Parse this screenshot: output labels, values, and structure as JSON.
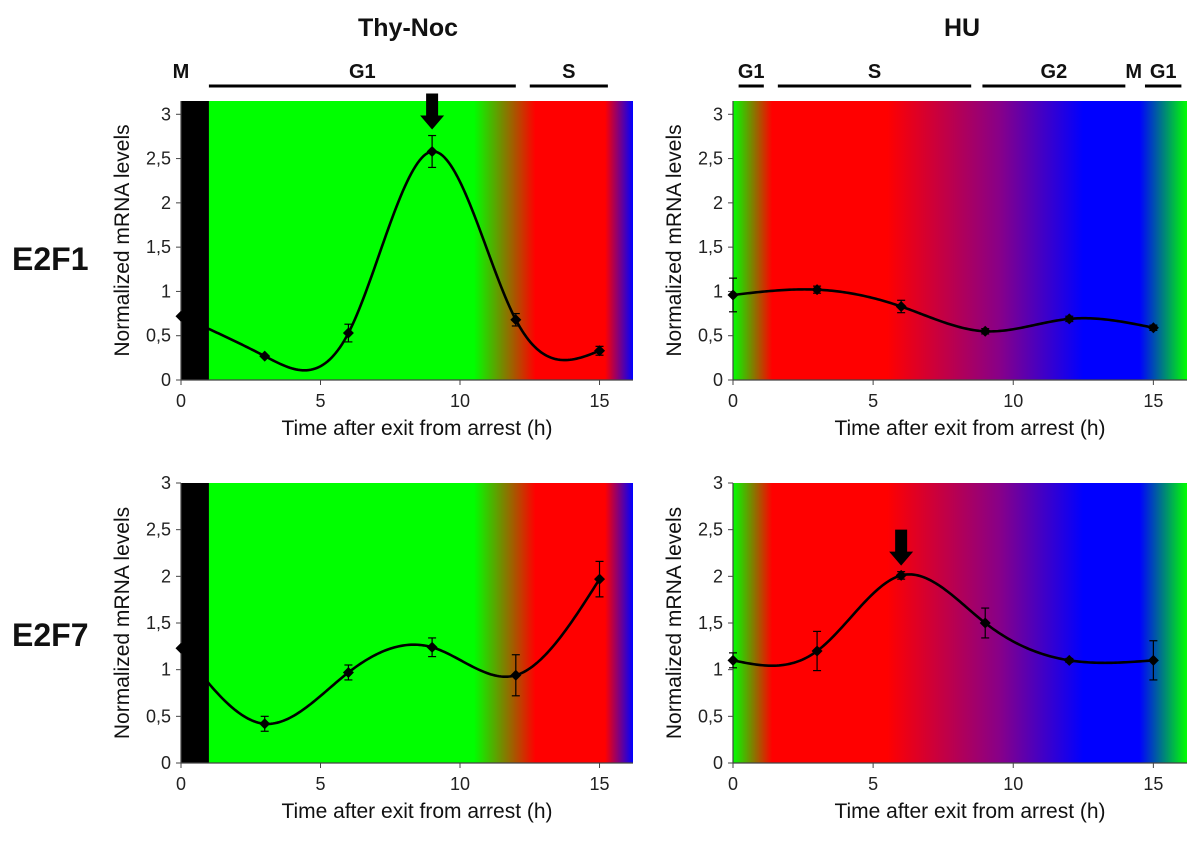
{
  "figure": {
    "col_titles": [
      "Thy-Noc",
      "HU"
    ],
    "row_labels": [
      "E2F1",
      "E2F7"
    ],
    "phase_bars": [
      [
        {
          "label": "M",
          "start": -0.3,
          "end": 0.3,
          "line": false
        },
        {
          "label": "G1",
          "start": 1,
          "end": 12,
          "line": true
        },
        {
          "label": "S",
          "start": 12.5,
          "end": 15.3,
          "line": true
        }
      ],
      [
        {
          "label": "G1",
          "start": 0.2,
          "end": 1.1,
          "line": true
        },
        {
          "label": "S",
          "start": 1.6,
          "end": 8.5,
          "line": true
        },
        {
          "label": "G2",
          "start": 8.9,
          "end": 14.0,
          "line": true
        },
        {
          "label": "M",
          "start": 14.0,
          "end": 14.6,
          "line": false
        },
        {
          "label": "G1",
          "start": 14.7,
          "end": 16.0,
          "line": true
        }
      ]
    ],
    "backgrounds": {
      "thy": [
        [
          0,
          "#00ff00"
        ],
        [
          10.5,
          "#00ff00"
        ],
        [
          12.7,
          "#ff0000"
        ],
        [
          15.2,
          "#ff0000"
        ],
        [
          16.2,
          "#0000ff"
        ]
      ],
      "hu": [
        [
          0,
          "#00ff00"
        ],
        [
          1.4,
          "#ff0000"
        ],
        [
          5.5,
          "#ff0000"
        ],
        [
          9.5,
          "#880088"
        ],
        [
          12.5,
          "#0000ff"
        ],
        [
          14.5,
          "#0000ff"
        ],
        [
          16.2,
          "#00ff00"
        ]
      ],
      "thy_black_band": [
        0,
        1
      ]
    }
  },
  "chart_data": [
    {
      "id": "e2f1-thy",
      "type": "line",
      "title": "Thy-Noc",
      "row": "E2F1",
      "xlabel": "Time after exit from arrest (h)",
      "ylabel": "Normalized mRNA levels",
      "xlim": [
        0,
        16.2
      ],
      "ylim": [
        0,
        3.15
      ],
      "xticks": [
        0,
        5,
        10,
        15
      ],
      "xtick_labels": [
        "0",
        "5",
        "10",
        "15"
      ],
      "yticks": [
        0,
        0.5,
        1,
        1.5,
        2,
        2.5,
        3
      ],
      "ytick_labels": [
        "0",
        "0,5",
        "1",
        "1,5",
        "2",
        "2,5",
        "3"
      ],
      "x": [
        0,
        3,
        6,
        9,
        12,
        15
      ],
      "y": [
        0.72,
        0.27,
        0.53,
        2.58,
        0.68,
        0.33
      ],
      "err": [
        0,
        0,
        0.1,
        0.18,
        0.07,
        0.05
      ],
      "arrow_at": 9
    },
    {
      "id": "e2f1-hu",
      "type": "line",
      "title": "HU",
      "row": "E2F1",
      "xlabel": "Time after exit from arrest (h)",
      "ylabel": "Normalized mRNA levels",
      "xlim": [
        0,
        16.2
      ],
      "ylim": [
        0,
        3.15
      ],
      "xticks": [
        0,
        5,
        10,
        15
      ],
      "xtick_labels": [
        "0",
        "5",
        "10",
        "15"
      ],
      "yticks": [
        0,
        0.5,
        1,
        1.5,
        2,
        2.5,
        3
      ],
      "ytick_labels": [
        "0",
        "0,5",
        "1",
        "1,5",
        "2",
        "2,5",
        "3"
      ],
      "x": [
        0,
        3,
        6,
        9,
        12,
        15
      ],
      "y": [
        0.96,
        1.02,
        0.83,
        0.55,
        0.69,
        0.59
      ],
      "err": [
        0.19,
        0.04,
        0.07,
        0.03,
        0.03,
        0.03
      ],
      "arrow_at": null
    },
    {
      "id": "e2f7-thy",
      "type": "line",
      "title": "Thy-Noc",
      "row": "E2F7",
      "xlabel": "Time after exit from arrest (h)",
      "ylabel": "Normalized mRNA levels",
      "xlim": [
        0,
        16.2
      ],
      "ylim": [
        0,
        3.0
      ],
      "xticks": [
        0,
        5,
        10,
        15
      ],
      "xtick_labels": [
        "0",
        "5",
        "10",
        "15"
      ],
      "yticks": [
        0,
        0.5,
        1,
        1.5,
        2,
        2.5,
        3
      ],
      "ytick_labels": [
        "0",
        "0,5",
        "1",
        "1,5",
        "2",
        "2,5",
        "3"
      ],
      "x": [
        0,
        3,
        6,
        9,
        12,
        15
      ],
      "y": [
        1.23,
        0.42,
        0.97,
        1.24,
        0.94,
        1.97
      ],
      "err": [
        0,
        0.08,
        0.08,
        0.1,
        0.22,
        0.19
      ],
      "arrow_at": null
    },
    {
      "id": "e2f7-hu",
      "type": "line",
      "title": "HU",
      "row": "E2F7",
      "xlabel": "Time after exit from arrest (h)",
      "ylabel": "Normalized mRNA levels",
      "xlim": [
        0,
        16.2
      ],
      "ylim": [
        0,
        3.0
      ],
      "xticks": [
        0,
        5,
        10,
        15
      ],
      "xtick_labels": [
        "0",
        "5",
        "10",
        "15"
      ],
      "yticks": [
        0,
        0.5,
        1,
        1.5,
        2,
        2.5,
        3
      ],
      "ytick_labels": [
        "0",
        "0,5",
        "1",
        "1,5",
        "2",
        "2,5",
        "3"
      ],
      "x": [
        0,
        3,
        6,
        9,
        12,
        15
      ],
      "y": [
        1.1,
        1.2,
        2.01,
        1.5,
        1.1,
        1.1
      ],
      "err": [
        0.08,
        0.21,
        0.04,
        0.16,
        0.02,
        0.21
      ],
      "arrow_at": 6
    }
  ]
}
